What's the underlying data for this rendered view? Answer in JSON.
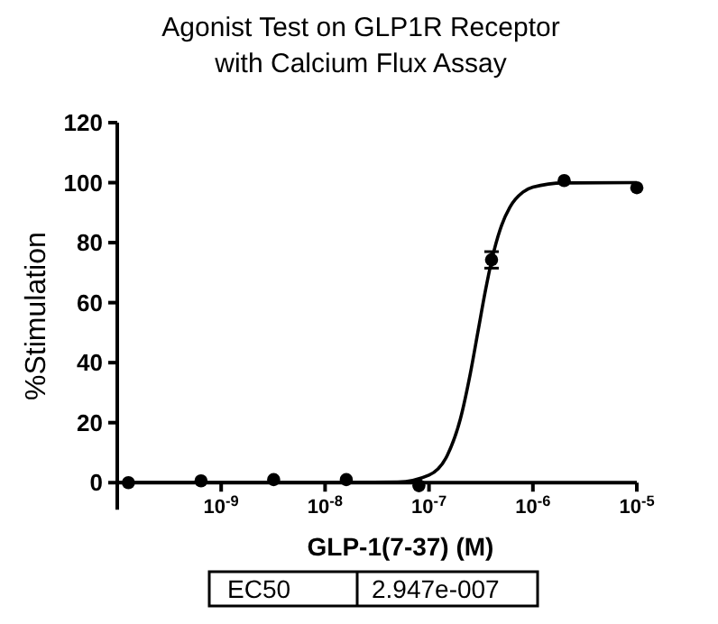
{
  "chart_data": {
    "type": "scatter",
    "title": "Agonist Test on GLP1R Receptor\nwith Calcium Flux Assay",
    "xlabel": "GLP-1(7-37) (M)",
    "ylabel": "%Stimulation",
    "log": "x",
    "xlim": [
      1e-10,
      1e-05
    ],
    "xticks": [
      {
        "value": 1e-09,
        "label": "10$^{-9}$"
      },
      {
        "value": 1e-08,
        "label": "10$^{-8}$"
      },
      {
        "value": 1e-07,
        "label": "10$^{-7}$"
      },
      {
        "value": 1e-06,
        "label": "10$^{-6}$"
      },
      {
        "value": 1e-05,
        "label": "10$^{-5}$"
      }
    ],
    "ylim": [
      -9,
      120
    ],
    "yticks": [
      0,
      20,
      40,
      60,
      80,
      100,
      120
    ],
    "grid": false,
    "series": [
      {
        "color": "#000000",
        "marker": "circle",
        "x": [
          1.28e-10,
          6.4e-10,
          3.2e-09,
          1.6e-08,
          8e-08,
          4e-07,
          2e-06,
          1e-05
        ],
        "values": [
          0,
          0.6,
          1,
          1,
          -1,
          74.3,
          100.7,
          98.3
        ],
        "errors": [
          null,
          null,
          null,
          null,
          null,
          [
            71.5,
            77
          ],
          null,
          null
        ]
      },
      {
        "type": "line",
        "color": "#000000",
        "marker": "none",
        "x": [
          1e-10,
          1e-08,
          5e-08,
          1e-07,
          1.5e-07,
          2e-07,
          2.5e-07,
          2.947e-07,
          3.5e-07,
          4e-07,
          5e-07,
          6e-07,
          8e-07,
          1e-06,
          2e-06,
          1e-05
        ],
        "values": [
          0,
          0,
          0.2,
          2.5,
          9.1,
          21.1,
          36.4,
          50,
          64.2,
          73.9,
          85.8,
          91.8,
          96.8,
          98.5,
          99.9,
          100
        ]
      }
    ],
    "annotations": [
      "EC50",
      "2.947e-007"
    ]
  }
}
